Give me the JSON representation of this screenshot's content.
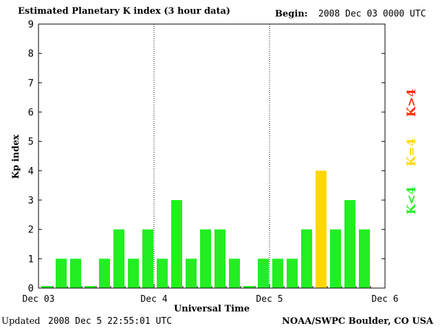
{
  "header": {
    "title": "Estimated Planetary K index (3 hour data)",
    "begin_label": "Begin:",
    "begin_value": "2008 Dec 03 0000 UTC"
  },
  "footer": {
    "updated_label": "Updated",
    "updated_value": "2008 Dec  5 22:55:01 UTC",
    "credit": "NOAA/SWPC Boulder, CO USA"
  },
  "legend": {
    "high": {
      "label": "K>4",
      "color": "#ff2a00"
    },
    "equal": {
      "label": "K=4",
      "color": "#ffd700"
    },
    "low": {
      "label": "K<4",
      "color": "#22ee22"
    }
  },
  "chart_data": {
    "type": "bar",
    "title": "Estimated Planetary K index (3 hour data)",
    "xlabel": "Universal Time",
    "ylabel": "Kp index",
    "ylim": [
      0,
      9
    ],
    "yticks": [
      "0",
      "1",
      "2",
      "3",
      "4",
      "5",
      "6",
      "7",
      "8",
      "9"
    ],
    "xticks": [
      "Dec 03",
      "Dec 4",
      "Dec 5",
      "Dec 6"
    ],
    "interval_hours": 3,
    "values": [
      0,
      1,
      1,
      0,
      1,
      2,
      1,
      2,
      1,
      3,
      1,
      2,
      2,
      1,
      0,
      1,
      1,
      1,
      2,
      4,
      2,
      3,
      2
    ],
    "colors": {
      "below4": "#22ee22",
      "equal4": "#ffd700",
      "above4": "#ff2a00"
    }
  }
}
